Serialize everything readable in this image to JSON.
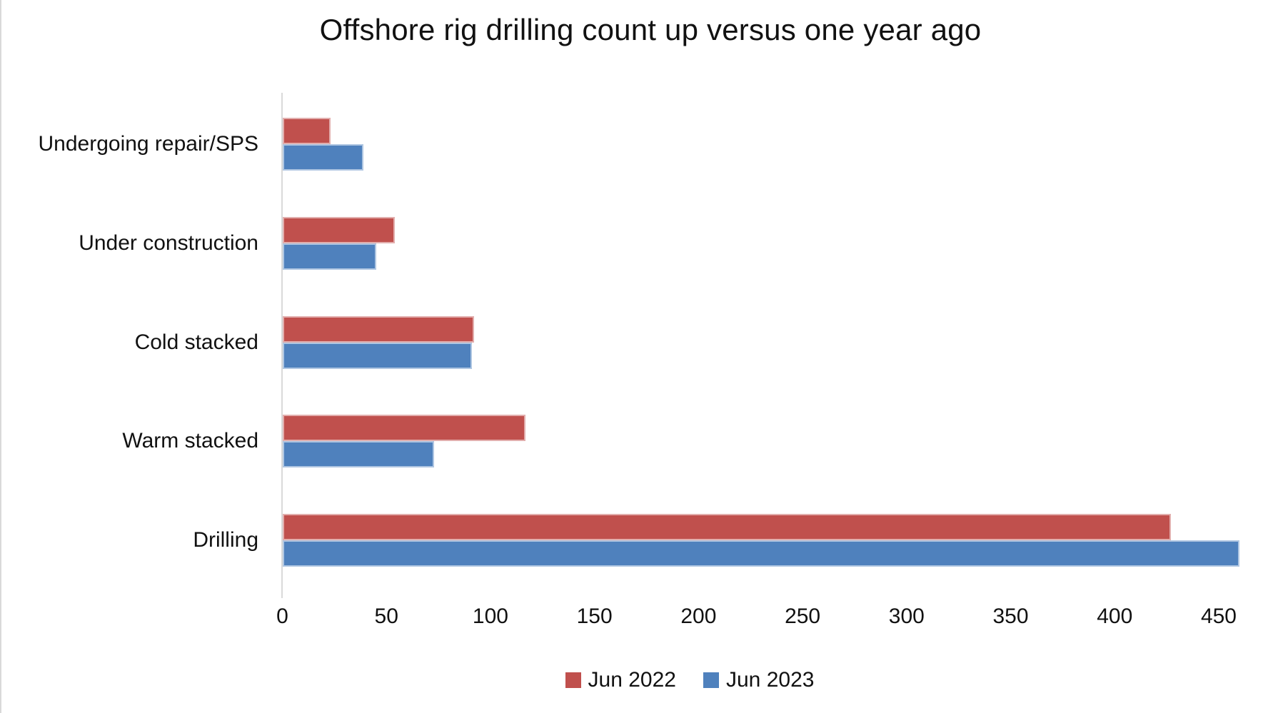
{
  "chart_data": {
    "type": "bar",
    "orientation": "horizontal",
    "title": "Offshore rig drilling count up versus one year ago",
    "categories": [
      "Undergoing repair/SPS",
      "Under construction",
      "Cold stacked",
      "Warm stacked",
      "Drilling"
    ],
    "series": [
      {
        "name": "Jun 2022",
        "color": "#C0504D",
        "border_color": "#E2AEAD",
        "values": [
          23,
          54,
          92,
          117,
          427
        ]
      },
      {
        "name": "Jun 2023",
        "color": "#4F81BD",
        "border_color": "#AFC6E2",
        "values": [
          39,
          45,
          91,
          73,
          460
        ]
      }
    ],
    "x_axis": {
      "min": 0,
      "max": 469,
      "ticks": [
        0,
        50,
        100,
        150,
        200,
        250,
        300,
        350,
        400,
        450
      ]
    },
    "ylabel": "",
    "xlabel": "",
    "legend_position": "bottom",
    "gridlines": false,
    "colors": {
      "axis_line": "#d9d9d9",
      "text": "#111111",
      "background": "#ffffff"
    }
  }
}
